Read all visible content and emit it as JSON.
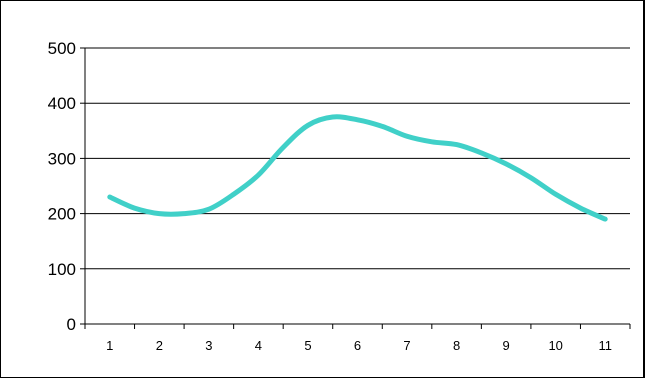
{
  "chart_data": {
    "type": "line",
    "title": "",
    "xlabel": "",
    "ylabel": "",
    "categories": [
      "1",
      "2",
      "3",
      "4",
      "5",
      "6",
      "7",
      "8",
      "9",
      "10",
      "11"
    ],
    "x": [
      1,
      1.5,
      2,
      2.5,
      3,
      3.5,
      4,
      4.5,
      5,
      5.5,
      6,
      6.5,
      7,
      7.5,
      8,
      8.5,
      9,
      9.5,
      10,
      10.5,
      11
    ],
    "series": [
      {
        "values": [
          230,
          210,
          200,
          200,
          208,
          235,
          270,
          320,
          360,
          375,
          370,
          358,
          340,
          330,
          325,
          310,
          290,
          265,
          235,
          210,
          190
        ]
      }
    ],
    "ylim": [
      0,
      500
    ],
    "yticks": [
      0,
      100,
      200,
      300,
      400,
      500
    ],
    "grid": true,
    "legend": "none",
    "line_color": "#40D0C8",
    "grid_color": "#000000"
  }
}
